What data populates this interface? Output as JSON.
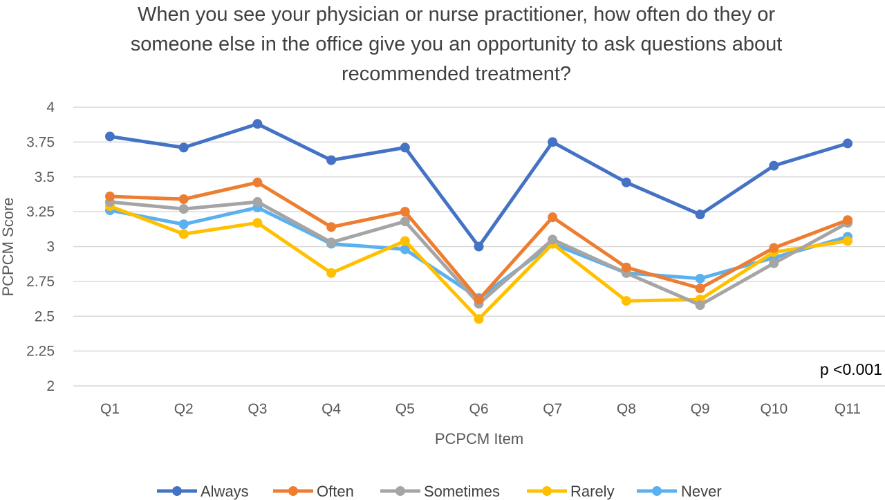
{
  "chart_data": {
    "type": "line",
    "title_lines": [
      "When you see your physician or nurse practitioner, how often do they or",
      "someone else in the office give you an opportunity to ask questions about",
      "recommended treatment?"
    ],
    "xlabel": "PCPCM Item",
    "ylabel": "PCPCM Score",
    "categories": [
      "Q1",
      "Q2",
      "Q3",
      "Q4",
      "Q5",
      "Q6",
      "Q7",
      "Q8",
      "Q9",
      "Q10",
      "Q11"
    ],
    "ylim": [
      2,
      4
    ],
    "yticks": [
      "2",
      "2.25",
      "2.5",
      "2.75",
      "3",
      "3.25",
      "3.5",
      "3.75",
      "4"
    ],
    "grid": true,
    "legend_position": "bottom",
    "annotation": "p <0.001",
    "series": [
      {
        "name": "Always",
        "color": "#4472C4",
        "values": [
          3.79,
          3.71,
          3.88,
          3.62,
          3.71,
          3.0,
          3.75,
          3.46,
          3.23,
          3.58,
          3.74
        ]
      },
      {
        "name": "Often",
        "color": "#ED7D31",
        "values": [
          3.36,
          3.34,
          3.46,
          3.14,
          3.25,
          2.62,
          3.21,
          2.85,
          2.7,
          2.99,
          3.19
        ]
      },
      {
        "name": "Sometimes",
        "color": "#A5A5A5",
        "values": [
          3.32,
          3.27,
          3.32,
          3.03,
          3.18,
          2.59,
          3.05,
          2.81,
          2.58,
          2.88,
          3.17
        ]
      },
      {
        "name": "Rarely",
        "color": "#FFC000",
        "values": [
          3.29,
          3.09,
          3.17,
          2.81,
          3.04,
          2.48,
          3.02,
          2.61,
          2.62,
          2.96,
          3.04
        ]
      },
      {
        "name": "Never",
        "color": "#5BB0F0",
        "values": [
          3.26,
          3.16,
          3.28,
          3.02,
          2.98,
          2.63,
          3.02,
          2.81,
          2.77,
          2.92,
          3.07
        ]
      }
    ]
  }
}
